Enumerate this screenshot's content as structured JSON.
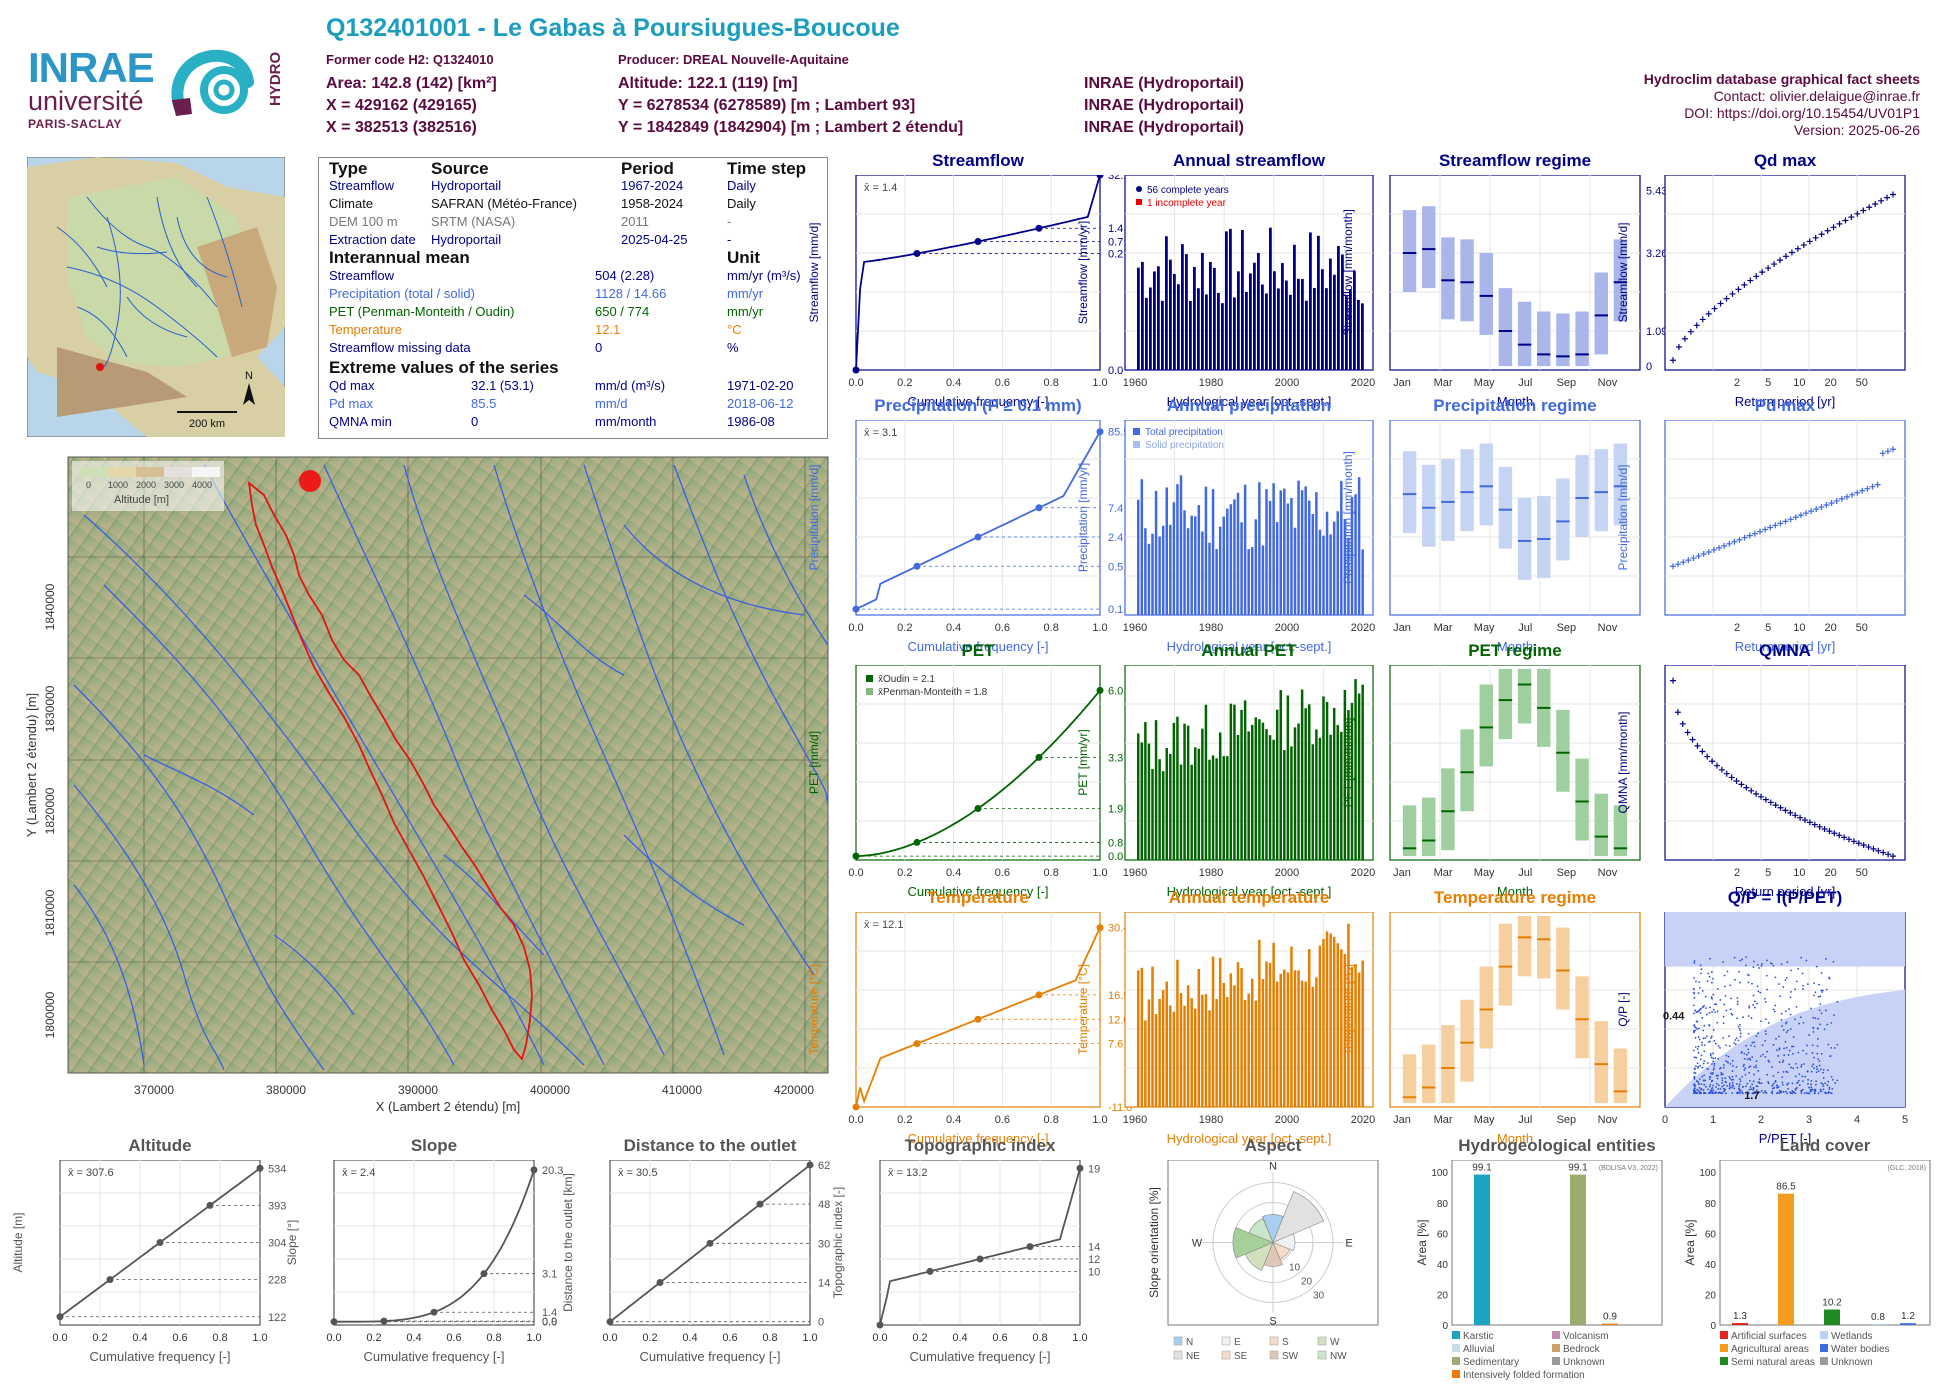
{
  "header": {
    "title": "Q132401001 - Le Gabas à Poursiugues-Boucoue",
    "former_code": "Former code H2: Q1324010",
    "producer": "Producer: DREAL Nouvelle-Aquitaine",
    "area": "Area: 142.8 (142) [km²]",
    "altitude": "Altitude: 122.1 (119) [m]",
    "x1": "X = 429162 (429165)",
    "y1": "Y = 6278534 (6278589) [m ; Lambert 93]",
    "x2": "X = 382513 (382516)",
    "y2": "Y = 1842849 (1842904) [m ; Lambert 2 étendu]",
    "source1": "INRAE (Hydroportail)",
    "source2": "INRAE (Hydroportail)",
    "source3": "INRAE (Hydroportail)",
    "right_title": "Hydroclim database graphical fact sheets",
    "contact": "Contact: olivier.delaigue@inrae.fr",
    "doi": "DOI: https://doi.org/10.15454/UV01P1",
    "version": "Version: 2025-06-26"
  },
  "logos": {
    "inrae": "INRAE",
    "universite": "université",
    "paris_saclay": "PARIS-SACLAY",
    "hydro": "HYDRO"
  },
  "colors": {
    "header_title": "#1b9dbf",
    "header_meta": "#5b0a3f",
    "streamflow": "#00008b",
    "precipitation": "#4169e1",
    "pet": "#006400",
    "temperature": "#e67e00",
    "terrain": "#7a9a6a"
  },
  "info_table": {
    "headers": [
      "Type",
      "Source",
      "Period",
      "Time step"
    ],
    "rows": [
      {
        "type": "Streamflow",
        "source": "Hydroportail",
        "period": "1967-2024",
        "step": "Daily",
        "color": "#00008b"
      },
      {
        "type": "Climate",
        "source": "SAFRAN (Météo-France)",
        "period": "1958-2024",
        "step": "Daily",
        "color": "#111111"
      },
      {
        "type": "DEM 100 m",
        "source": "SRTM (NASA)",
        "period": "2011",
        "step": "-",
        "color": "#777777"
      },
      {
        "type": "Extraction date",
        "source": "Hydroportail",
        "period": "2025-04-25",
        "step": "-",
        "color": "#00008b"
      }
    ],
    "mean_title": "Interannual mean",
    "unit_title": "Unit",
    "means": [
      {
        "label": "Streamflow",
        "value": "504 (2.28)",
        "unit": "mm/yr (m³/s)",
        "color": "#00008b"
      },
      {
        "label": "Precipitation (total / solid)",
        "value": "1128 / 14.66",
        "unit": "mm/yr",
        "color": "#4169e1"
      },
      {
        "label": "PET (Penman-Monteith / Oudin)",
        "value": "650 / 774",
        "unit": "mm/yr",
        "color": "#006400"
      },
      {
        "label": "Temperature",
        "value": "12.1",
        "unit": "°C",
        "color": "#e67e00"
      },
      {
        "label": "Streamflow missing data",
        "value": "0",
        "unit": "%",
        "color": "#00008b"
      }
    ],
    "extreme_title": "Extreme values of the series",
    "extremes": [
      {
        "label": "Qd max",
        "value": "32.1 (53.1)",
        "unit": "mm/d (m³/s)",
        "date": "1971-02-20",
        "color": "#00008b"
      },
      {
        "label": "Pd max",
        "value": "85.5",
        "unit": "mm/d",
        "date": "2018-06-12",
        "color": "#4169e1"
      },
      {
        "label": "QMNA min",
        "value": "0",
        "unit": "mm/month",
        "date": "1986-08",
        "color": "#00008b"
      }
    ]
  },
  "france_map": {
    "scale_label": "200 km",
    "north": "N"
  },
  "catchment_map": {
    "xlabel": "X (Lambert 2 étendu) [m]",
    "ylabel": "Y (Lambert 2 étendu) [m]",
    "xticks": [
      "370000",
      "380000",
      "390000",
      "400000",
      "410000",
      "420000"
    ],
    "yticks": [
      "1800000",
      "1810000",
      "1820000",
      "1830000",
      "1840000"
    ],
    "legend_title": "Altitude [m]",
    "legend_ticks": [
      "0",
      "1000",
      "2000",
      "3000",
      "4000"
    ]
  },
  "panels": {
    "streamflow": {
      "title": "Streamflow",
      "ylabel": "Streamflow [mm/d]",
      "xlabel": "Cumulative frequency [-]",
      "mean": "x̄ = 1.4",
      "right_ticks": [
        "32.1",
        "1.4",
        "0.7",
        "0.2",
        "0.0"
      ]
    },
    "annual_streamflow": {
      "title": "Annual streamflow",
      "ylabel": "Streamflow [mm/yr]",
      "xlabel": "Hydrological year [oct.-sept.]",
      "legend": [
        "56 complete years",
        "1 incomplete year"
      ]
    },
    "streamflow_regime": {
      "title": "Streamflow regime",
      "ylabel": "Streamflow [mm/month]",
      "xlabel": "Month",
      "right_ticks": [
        "5.43",
        "3.26",
        "1.09",
        "0"
      ]
    },
    "qd_max": {
      "title": "Qd max",
      "ylabel": "Streamflow [mm/d]",
      "xlabel": "Return period [yr]"
    },
    "precip": {
      "title": "Precipitation (P ≥ 0.1 mm)",
      "ylabel": "Precipitation [mm/d]",
      "xlabel": "Cumulative frequency [-]",
      "mean": "x̄ = 3.1",
      "right_ticks": [
        "85.5",
        "7.4",
        "2.4",
        "0.5",
        "0.1"
      ]
    },
    "annual_precip": {
      "title": "Annual precipitation",
      "ylabel": "Precipitation [mm/yr]",
      "xlabel": "Hydrological year [oct.-sept.]",
      "legend": [
        "Total precipitation",
        "Solid precipitation"
      ]
    },
    "precip_regime": {
      "title": "Precipitation regime",
      "ylabel": "Precipitation [mm/month]",
      "xlabel": "Month"
    },
    "pd_max": {
      "title": "Pd max",
      "ylabel": "Precipitation [mm/d]",
      "xlabel": "Return period [yr]"
    },
    "pet": {
      "title": "PET",
      "ylabel": "PET [mm/d]",
      "xlabel": "Cumulative frequency [-]",
      "legend": [
        "x̄Oudin = 2.1",
        "x̄Penman-Monteith = 1.8"
      ],
      "right_ticks": [
        "6.0",
        "3.3",
        "1.9",
        "0.8",
        "0.0"
      ]
    },
    "annual_pet": {
      "title": "Annual PET",
      "ylabel": "PET [mm/yr]",
      "xlabel": "Hydrological year [oct.-sept.]"
    },
    "pet_regime": {
      "title": "PET regime",
      "ylabel": "PET [mm/month]",
      "xlabel": "Month"
    },
    "qmna": {
      "title": "QMNA",
      "ylabel": "QMNA [mm/month]",
      "xlabel": "Return period [yr]"
    },
    "temp": {
      "title": "Temperature",
      "ylabel": "Temperature [°C]",
      "xlabel": "Cumulative frequency [-]",
      "mean": "x̄ = 12.1",
      "right_ticks": [
        "30.4",
        "16.9",
        "12.0",
        "7.6",
        "-11.0"
      ]
    },
    "annual_temp": {
      "title": "Annual temperature",
      "ylabel": "Temperature [°C]",
      "xlabel": "Hydrological year [oct.-sept.]"
    },
    "temp_regime": {
      "title": "Temperature regime",
      "ylabel": "Temperature [°C]",
      "xlabel": "Month"
    },
    "qp": {
      "title": "Q/P = f(P/PET)",
      "ylabel": "Q/P [-]",
      "xlabel": "P/PET [-]",
      "label1": "0.44",
      "label2": "1.7"
    },
    "altitude": {
      "title": "Altitude",
      "ylabel": "Altitude [m]",
      "xlabel": "Cumulative frequency [-]",
      "mean": "x̄ = 307.6",
      "right_ticks": [
        "534",
        "393",
        "304",
        "228",
        "122"
      ]
    },
    "slope": {
      "title": "Slope",
      "ylabel": "Slope [°]",
      "xlabel": "Cumulative frequency [-]",
      "mean": "x̄ = 2.4",
      "right_ticks": [
        "20.3",
        "3.1",
        "1.4",
        "0.9",
        "0.0"
      ]
    },
    "distance": {
      "title": "Distance to the outlet",
      "ylabel": "Distance to the outlet [km]",
      "xlabel": "Cumulative frequency [-]",
      "mean": "x̄ = 30.5",
      "right_ticks": [
        "62",
        "48",
        "30",
        "14",
        "0"
      ]
    },
    "topo": {
      "title": "Topographic index",
      "ylabel": "Topographic index [-]",
      "xlabel": "Cumulative frequency [-]",
      "mean": "x̄ = 13.2",
      "right_ticks": [
        "19",
        "14",
        "12",
        "10"
      ]
    },
    "aspect": {
      "title": "Aspect",
      "ylabel": "Slope orientation [%]",
      "directions": [
        "N",
        "E",
        "S",
        "W"
      ],
      "rings": [
        "10",
        "20",
        "30"
      ],
      "legend": [
        "N",
        "E",
        "S",
        "W",
        "NE",
        "SE",
        "SW",
        "NW"
      ]
    },
    "hydrogeo": {
      "title": "Hydrogeological entities",
      "ylabel": "Area [%]",
      "source": "(BDLISA V3, 2022)",
      "legend": [
        "Karstic",
        "Volcanism",
        "Alluvial",
        "Bedrock",
        "Sedimentary",
        "Unknown",
        "Intensively folded formation"
      ]
    },
    "landcover": {
      "title": "Land cover",
      "ylabel": "Area [%]",
      "source": "(GLC, 2018)",
      "legend": [
        "Artificial surfaces",
        "Wetlands",
        "Agricultural areas",
        "Water bodies",
        "Semi natural areas",
        "Unknown"
      ]
    }
  },
  "chart_data": [
    {
      "type": "line",
      "title": "Streamflow",
      "xlabel": "Cumulative frequency [-]",
      "ylabel": "Streamflow [mm/d]",
      "x": [
        0,
        0.25,
        0.5,
        0.75,
        1
      ],
      "y": [
        0.0,
        0.2,
        0.7,
        1.4,
        32.1
      ],
      "ylog": true
    },
    {
      "type": "bar",
      "title": "Annual streamflow",
      "xlabel": "Hydrological year [oct.-sept.]",
      "ylabel": "Streamflow [mm/yr]",
      "ylim": [
        0,
        1000
      ],
      "x": [
        1967,
        1968,
        1969,
        1970,
        1971,
        1972,
        1973,
        1974,
        1975,
        1976,
        1977,
        1978,
        1979,
        1980,
        1981,
        1982,
        1983,
        1984,
        1985,
        1986,
        1987,
        1988,
        1989,
        1990,
        1991,
        1992,
        1993,
        1994,
        1995,
        1996,
        1997,
        1998,
        1999,
        2000,
        2001,
        2002,
        2003,
        2004,
        2005,
        2006,
        2007,
        2008,
        2009,
        2010,
        2011,
        2012,
        2013,
        2014,
        2015,
        2016,
        2017,
        2018,
        2019,
        2020,
        2021,
        2022,
        2023
      ],
      "values": [
        420,
        480,
        610,
        820,
        580,
        700,
        560,
        640,
        690,
        500,
        760,
        820,
        740,
        580,
        800,
        620,
        710,
        540,
        480,
        380,
        570,
        760,
        300,
        280,
        610,
        680,
        800,
        620,
        700,
        560,
        440,
        620,
        580,
        640,
        520,
        360,
        420,
        400,
        300,
        280,
        360,
        560,
        500,
        560,
        320,
        460,
        600,
        680,
        480,
        500,
        340,
        560,
        480,
        600,
        520,
        320,
        380
      ],
      "incomplete": [
        2023
      ]
    },
    {
      "type": "boxplot",
      "title": "Streamflow regime",
      "xlabel": "Month",
      "ylabel": "Streamflow [mm/month]",
      "categories": [
        "Jan",
        "Feb",
        "Mar",
        "Apr",
        "May",
        "Jun",
        "Jul",
        "Aug",
        "Sep",
        "Oct",
        "Nov",
        "Dec"
      ],
      "median": [
        67,
        69,
        51,
        49,
        42,
        22,
        14,
        9,
        8,
        9,
        30,
        49
      ],
      "q_low": [
        41,
        44,
        33,
        30,
        24,
        13,
        8,
        4,
        4,
        3,
        16,
        30
      ],
      "q_high": [
        100,
        95,
        86,
        82,
        70,
        40,
        21,
        14,
        13,
        14,
        52,
        92
      ]
    },
    {
      "type": "scatter",
      "title": "Qd max",
      "xlabel": "Return period [yr]",
      "ylabel": "Streamflow [mm/d]",
      "y": [
        5,
        7,
        9,
        11,
        13,
        15,
        17,
        19,
        21,
        23,
        25,
        27,
        29,
        31,
        32
      ]
    },
    {
      "type": "line",
      "title": "Precipitation (P ≥ 0.1 mm)",
      "xlabel": "Cumulative frequency [-]",
      "ylabel": "Precipitation [mm/d]",
      "x": [
        0,
        0.25,
        0.5,
        0.75,
        1
      ],
      "y": [
        0.1,
        0.5,
        2.4,
        7.4,
        85.5
      ],
      "ylog": true
    },
    {
      "type": "bar",
      "title": "Annual precipitation",
      "xlabel": "Hydrological year [oct.-sept.]",
      "ylabel": "Precipitation [mm/yr]",
      "ylim": [
        0,
        1750
      ]
    },
    {
      "type": "boxplot",
      "title": "Precipitation regime",
      "xlabel": "Month",
      "ylabel": "Precipitation [mm/month]",
      "categories": [
        "Jan",
        "Feb",
        "Mar",
        "Apr",
        "May",
        "Jun",
        "Jul",
        "Aug",
        "Sep",
        "Oct",
        "Nov",
        "Dec"
      ],
      "median": [
        100,
        88,
        92,
        101,
        104,
        86,
        60,
        61,
        76,
        95,
        101,
        106
      ]
    },
    {
      "type": "scatter",
      "title": "Pd max",
      "xlabel": "Return period [yr]",
      "ylabel": "Precipitation [mm/d]"
    },
    {
      "type": "line",
      "title": "PET",
      "xlabel": "Cumulative frequency [-]",
      "ylabel": "PET [mm/d]",
      "x": [
        0,
        0.25,
        0.5,
        0.75,
        1
      ],
      "y": [
        0.0,
        0.8,
        1.9,
        3.3,
        6.0
      ]
    },
    {
      "type": "bar",
      "title": "Annual PET",
      "xlabel": "Hydrological year [oct.-sept.]",
      "ylabel": "PET [mm/yr]"
    },
    {
      "type": "boxplot",
      "title": "PET regime",
      "xlabel": "Month",
      "ylabel": "PET [mm/month]"
    },
    {
      "type": "scatter",
      "title": "QMNA",
      "xlabel": "Return period [yr]",
      "ylabel": "QMNA [mm/month]"
    },
    {
      "type": "line",
      "title": "Temperature",
      "xlabel": "Cumulative frequency [-]",
      "ylabel": "Temperature [°C]",
      "x": [
        0,
        0.25,
        0.5,
        0.75,
        1
      ],
      "y": [
        -11.0,
        7.6,
        12.0,
        16.9,
        30.4
      ]
    },
    {
      "type": "bar",
      "title": "Annual temperature",
      "xlabel": "Hydrological year [oct.-sept.]",
      "ylabel": "Temperature [°C]"
    },
    {
      "type": "boxplot",
      "title": "Temperature regime",
      "xlabel": "Month",
      "ylabel": "Temperature [°C]"
    },
    {
      "type": "scatter",
      "title": "Q/P = f(P/PET)",
      "xlabel": "P/PET [-]",
      "ylabel": "Q/P [-]"
    },
    {
      "type": "line",
      "title": "Altitude",
      "xlabel": "Cumulative frequency [-]",
      "ylabel": "Altitude [m]",
      "x": [
        0,
        0.25,
        0.5,
        0.75,
        1
      ],
      "y": [
        122,
        228,
        304,
        393,
        534
      ]
    },
    {
      "type": "line",
      "title": "Slope",
      "xlabel": "Cumulative frequency [-]",
      "ylabel": "Slope [°]",
      "x": [
        0,
        0.25,
        0.5,
        0.75,
        1
      ],
      "y": [
        0.0,
        0.9,
        1.4,
        3.1,
        20.3
      ]
    },
    {
      "type": "line",
      "title": "Distance to the outlet",
      "xlabel": "Cumulative frequency [-]",
      "ylabel": "Distance to the outlet [km]",
      "x": [
        0,
        0.25,
        0.5,
        0.75,
        1
      ],
      "y": [
        0,
        14,
        30,
        48,
        62
      ]
    },
    {
      "type": "line",
      "title": "Topographic index",
      "xlabel": "Cumulative frequency [-]",
      "ylabel": "Topographic index [-]",
      "x": [
        0,
        0.25,
        0.5,
        0.75,
        1
      ],
      "y": [
        10,
        12.4,
        13,
        14,
        19
      ]
    },
    {
      "type": "bar",
      "title": "Aspect",
      "ylabel": "Slope orientation [%]"
    },
    {
      "type": "bar",
      "title": "Hydrogeological entities",
      "ylabel": "Area [%]",
      "categories": [
        "Karstic",
        "Sedimentary",
        "Intensively folded formation"
      ],
      "values": [
        99.1,
        99.1,
        0.9
      ]
    },
    {
      "type": "bar",
      "title": "Land cover",
      "ylabel": "Area [%]",
      "categories": [
        "Artificial surfaces",
        "Agricultural areas",
        "Semi natural areas",
        "Wetlands",
        "Water bodies"
      ],
      "values": [
        1.3,
        86.5,
        10.2,
        0.8,
        1.2
      ]
    }
  ]
}
